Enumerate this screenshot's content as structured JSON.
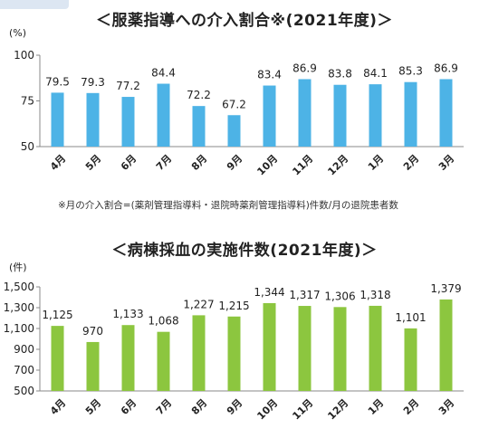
{
  "chart_data": [
    {
      "type": "bar",
      "title": "＜服薬指導への介入割合※(2021年度)＞",
      "ylabel": "(%)",
      "categories": [
        "4月",
        "5月",
        "6月",
        "7月",
        "8月",
        "9月",
        "10月",
        "11月",
        "12月",
        "1月",
        "2月",
        "3月"
      ],
      "values": [
        79.5,
        79.3,
        77.2,
        84.4,
        72.2,
        67.2,
        83.4,
        86.9,
        83.8,
        84.1,
        85.3,
        86.9
      ],
      "value_labels": [
        "79.5",
        "79.3",
        "77.2",
        "84.4",
        "72.2",
        "67.2",
        "83.4",
        "86.9",
        "83.8",
        "84.1",
        "85.3",
        "86.9"
      ],
      "ylim": [
        50,
        100
      ],
      "yticks": [
        50,
        75,
        100
      ],
      "ytick_labels": [
        "50",
        "75",
        "100"
      ],
      "bar_color": "#4db3e6",
      "grid": false,
      "note": "※月の介入割合=(薬剤管理指導料・退院時薬剤管理指導料)件数/月の退院患者数"
    },
    {
      "type": "bar",
      "title": "＜病棟採血の実施件数(2021年度)＞",
      "ylabel": "(件)",
      "categories": [
        "4月",
        "5月",
        "6月",
        "7月",
        "8月",
        "9月",
        "10月",
        "11月",
        "12月",
        "1月",
        "2月",
        "3月"
      ],
      "values": [
        1125,
        970,
        1133,
        1068,
        1227,
        1215,
        1344,
        1317,
        1306,
        1318,
        1101,
        1379
      ],
      "value_labels": [
        "1,125",
        "970",
        "1,133",
        "1,068",
        "1,227",
        "1,215",
        "1,344",
        "1,317",
        "1,306",
        "1,318",
        "1,101",
        "1,379"
      ],
      "ylim": [
        500,
        1500
      ],
      "yticks": [
        500,
        700,
        900,
        1100,
        1300,
        1500
      ],
      "ytick_labels": [
        "500",
        "700",
        "900",
        "1,100",
        "1,300",
        "1,500"
      ],
      "bar_color": "#8cc63f",
      "grid": false
    }
  ]
}
